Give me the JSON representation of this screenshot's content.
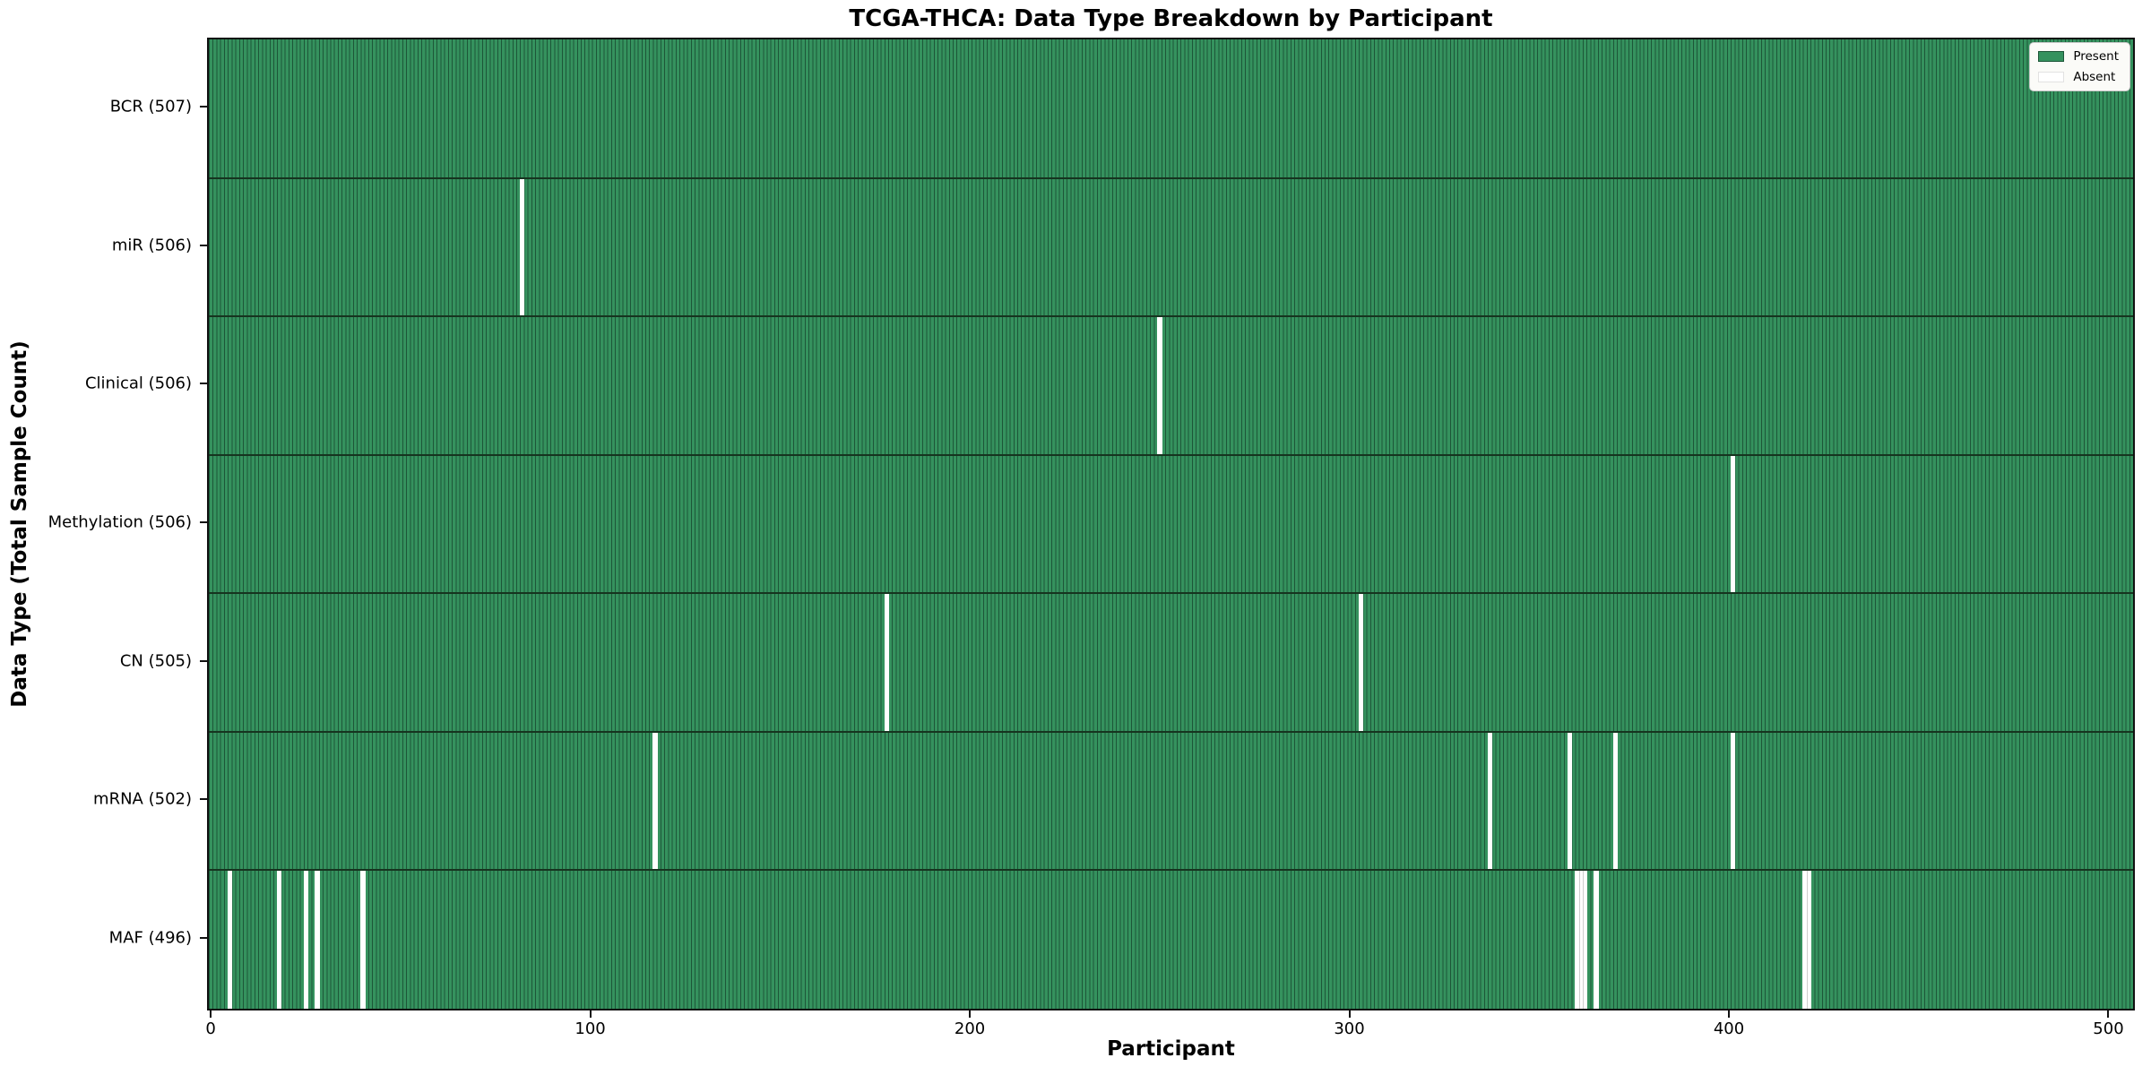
{
  "title": "TCGA-THCA: Data Type Breakdown by Participant",
  "xlabel": "Participant",
  "ylabel": "Data Type (Total Sample Count)",
  "legend": {
    "present_label": "Present",
    "absent_label": "Absent"
  },
  "chart_data": {
    "type": "heatmap",
    "title": "TCGA-THCA: Data Type Breakdown by Participant",
    "xlabel": "Participant",
    "ylabel": "Data Type (Total Sample Count)",
    "n_participants": 507,
    "x_ticks": [
      0,
      100,
      200,
      300,
      400,
      500
    ],
    "legend_position": "upper right",
    "legend_entries": [
      "Present",
      "Absent"
    ],
    "rows": [
      {
        "label": "BCR (507)",
        "total": 507,
        "absent_participants": []
      },
      {
        "label": "miR (506)",
        "total": 506,
        "absent_participants": [
          82
        ]
      },
      {
        "label": "Clinical (506)",
        "total": 506,
        "absent_participants": [
          250
        ]
      },
      {
        "label": "Methylation (506)",
        "total": 506,
        "absent_participants": [
          401
        ]
      },
      {
        "label": "CN (505)",
        "total": 505,
        "absent_participants": [
          178,
          303
        ]
      },
      {
        "label": "mRNA (502)",
        "total": 502,
        "absent_participants": [
          117,
          337,
          358,
          370,
          401
        ]
      },
      {
        "label": "MAF (496)",
        "total": 496,
        "absent_participants": [
          5,
          18,
          25,
          28,
          40,
          360,
          361,
          362,
          365,
          420,
          421
        ]
      }
    ],
    "colors": {
      "present_face": "#35925e",
      "present_edge": "#1d5638",
      "absent": "#ffffff",
      "row_divider": "#16341f",
      "axis": "#111111",
      "legend_bg": "#fbfbf8"
    }
  }
}
